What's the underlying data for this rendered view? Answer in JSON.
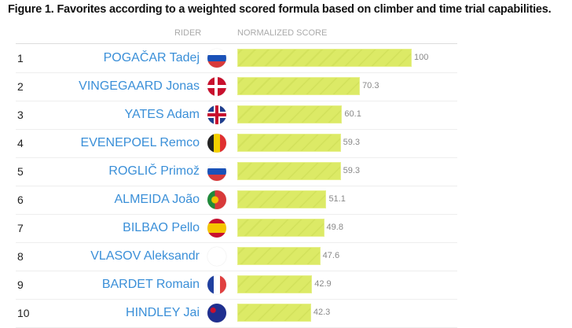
{
  "title": "Figure 1. Favorites according to a weighted scored formula based on climber and time trial capabilities.",
  "chart_data": {
    "type": "bar",
    "title": "Figure 1. Favorites according to a weighted scored formula based on climber and time trial capabilities.",
    "columns": [
      "RIDER",
      "NORMALIZED SCORE"
    ],
    "xlim": [
      0,
      100
    ],
    "rows": [
      {
        "rank": "1",
        "name": "POGAČAR Tadej",
        "flag": "slovenia",
        "value": 100
      },
      {
        "rank": "2",
        "name": "VINGEGAARD Jonas",
        "flag": "denmark",
        "value": 70.3
      },
      {
        "rank": "3",
        "name": "YATES Adam",
        "flag": "uk",
        "value": 60.1
      },
      {
        "rank": "4",
        "name": "EVENEPOEL Remco",
        "flag": "belgium",
        "value": 59.3
      },
      {
        "rank": "5",
        "name": "ROGLIČ Primož",
        "flag": "slovenia",
        "value": 59.3
      },
      {
        "rank": "6",
        "name": "ALMEIDA João",
        "flag": "portugal",
        "value": 51.1
      },
      {
        "rank": "7",
        "name": "BILBAO Pello",
        "flag": "spain",
        "value": 49.8
      },
      {
        "rank": "8",
        "name": "VLASOV Aleksandr",
        "flag": "none",
        "value": 47.6
      },
      {
        "rank": "9",
        "name": "BARDET Romain",
        "flag": "france",
        "value": 42.9
      },
      {
        "rank": "10",
        "name": "HINDLEY Jai",
        "flag": "australia",
        "value": 42.3
      }
    ]
  },
  "colors": {
    "bar": "#dcea66",
    "name": "#3a8fd8"
  }
}
